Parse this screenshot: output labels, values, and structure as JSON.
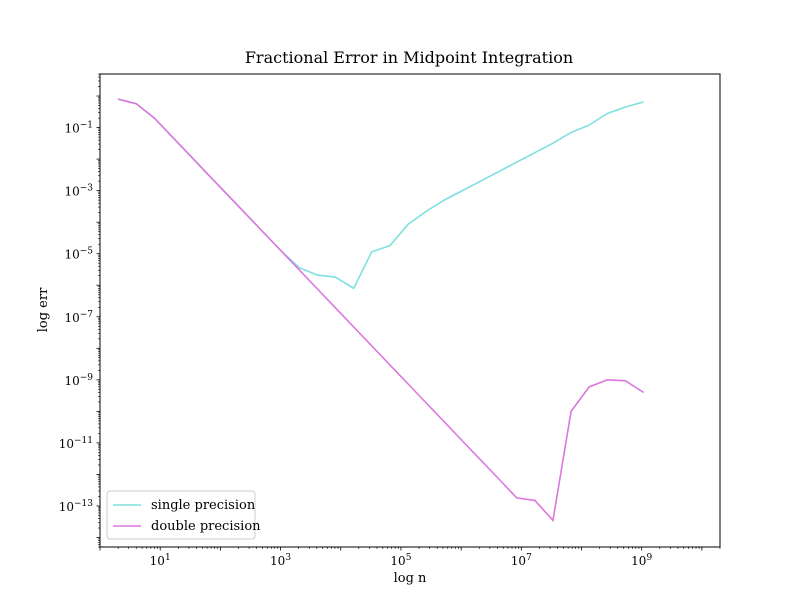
{
  "chart_data": {
    "type": "line",
    "title": "Fractional Error in Midpoint Integration",
    "xlabel": "log n",
    "ylabel": "log err",
    "xscale": "log",
    "yscale": "log",
    "xlim": [
      1.0,
      20000000000
    ],
    "ylim": [
      5e-15,
      5.0
    ],
    "grid": false,
    "legend_position": "bottom-left",
    "x_ticks": [
      {
        "value": 10,
        "base": "10",
        "exp": "1"
      },
      {
        "value": 1000,
        "base": "10",
        "exp": "3"
      },
      {
        "value": 100000,
        "base": "10",
        "exp": "5"
      },
      {
        "value": 10000000,
        "base": "10",
        "exp": "7"
      },
      {
        "value": 1000000000,
        "base": "10",
        "exp": "9"
      }
    ],
    "y_ticks": [
      {
        "value": 1e-13,
        "base": "10",
        "exp": "−13"
      },
      {
        "value": 1e-11,
        "base": "10",
        "exp": "−11"
      },
      {
        "value": 1e-09,
        "base": "10",
        "exp": "−9"
      },
      {
        "value": 1e-07,
        "base": "10",
        "exp": "−7"
      },
      {
        "value": 1e-05,
        "base": "10",
        "exp": "−5"
      },
      {
        "value": 0.001,
        "base": "10",
        "exp": "−3"
      },
      {
        "value": 0.1,
        "base": "10",
        "exp": "−1"
      }
    ],
    "series": [
      {
        "name": "single precision",
        "color": "#7fe0de",
        "x": [
          2,
          4,
          8,
          16,
          32,
          64,
          128,
          256,
          512,
          1024,
          2048,
          4096,
          8192,
          16384,
          32768,
          65536,
          131072,
          262144,
          524288,
          1048576,
          2097152,
          4194304,
          8388608,
          16777216,
          33554432,
          67108864,
          134217728,
          268435456,
          536870912,
          1073741824
        ],
        "y": [
          0.8,
          0.57,
          0.2,
          0.05,
          0.0125,
          0.0031,
          0.00078,
          0.000195,
          4.88e-05,
          1.22e-05,
          3.6e-06,
          2.1e-06,
          1.8e-06,
          8e-07,
          1.15e-05,
          1.8e-05,
          8.5e-05,
          0.00022,
          0.0005,
          0.001,
          0.002,
          0.004,
          0.008,
          0.016,
          0.032,
          0.07,
          0.12,
          0.28,
          0.45,
          0.65
        ]
      },
      {
        "name": "double precision",
        "color": "#dd77dd",
        "x": [
          2,
          4,
          8,
          16,
          32,
          64,
          128,
          256,
          512,
          1024,
          2048,
          4096,
          8192,
          16384,
          32768,
          65536,
          131072,
          262144,
          524288,
          1048576,
          2097152,
          4194304,
          8388608,
          16777216,
          33554432,
          67108864,
          134217728,
          268435456,
          536870912,
          1073741824
        ],
        "y": [
          0.8,
          0.57,
          0.2,
          0.05,
          0.0125,
          0.0031,
          0.00078,
          0.000195,
          4.88e-05,
          1.22e-05,
          3.05e-06,
          7.6e-07,
          1.9e-07,
          4.77e-08,
          1.19e-08,
          2.98e-09,
          7.45e-10,
          1.86e-10,
          4.66e-11,
          1.16e-11,
          2.9e-12,
          7.3e-13,
          1.8e-13,
          1.5e-13,
          3.5e-14,
          1e-10,
          6e-10,
          1e-09,
          9.3e-10,
          4e-10
        ]
      }
    ]
  }
}
